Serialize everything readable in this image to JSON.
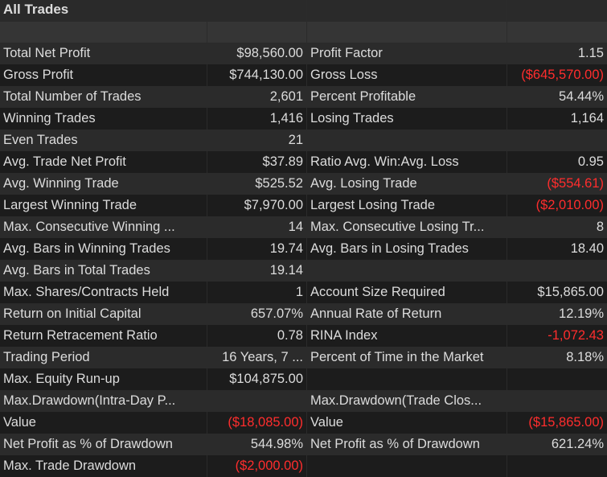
{
  "title": "All Trades",
  "colors": {
    "negative": "#ff2d2d",
    "text": "#dcdcdc",
    "row_dark": "#1c1c1c",
    "row_light": "#2b2b2b"
  },
  "rows": [
    {
      "l_label": "Total Net Profit",
      "l_value": "$98,560.00",
      "r_label": "Profit Factor",
      "r_value": "1.15"
    },
    {
      "l_label": "Gross Profit",
      "l_value": "$744,130.00",
      "r_label": "Gross Loss",
      "r_value": "($645,570.00)"
    },
    {
      "l_label": "Total Number of Trades",
      "l_value": "2,601",
      "r_label": "Percent Profitable",
      "r_value": "54.44%"
    },
    {
      "l_label": "Winning Trades",
      "l_value": "1,416",
      "r_label": "Losing Trades",
      "r_value": "1,164"
    },
    {
      "l_label": "Even Trades",
      "l_value": "21",
      "r_label": "",
      "r_value": ""
    },
    {
      "l_label": "Avg. Trade Net Profit",
      "l_value": "$37.89",
      "r_label": "Ratio Avg. Win:Avg. Loss",
      "r_value": "0.95"
    },
    {
      "l_label": "Avg. Winning Trade",
      "l_value": "$525.52",
      "r_label": "Avg. Losing Trade",
      "r_value": "($554.61)"
    },
    {
      "l_label": "Largest Winning Trade",
      "l_value": "$7,970.00",
      "r_label": "Largest Losing Trade",
      "r_value": "($2,010.00)"
    },
    {
      "l_label": "Max. Consecutive Winning ...",
      "l_value": "14",
      "r_label": "Max. Consecutive Losing Tr...",
      "r_value": "8"
    },
    {
      "l_label": "Avg. Bars in Winning Trades",
      "l_value": "19.74",
      "r_label": "Avg. Bars in Losing Trades",
      "r_value": "18.40"
    },
    {
      "l_label": "Avg. Bars in Total Trades",
      "l_value": "19.14",
      "r_label": "",
      "r_value": ""
    },
    {
      "l_label": "Max. Shares/Contracts Held",
      "l_value": "1",
      "r_label": "Account Size Required",
      "r_value": "$15,865.00"
    },
    {
      "l_label": "Return on Initial Capital",
      "l_value": "657.07%",
      "r_label": "Annual Rate of Return",
      "r_value": "12.19%"
    },
    {
      "l_label": "Return Retracement Ratio",
      "l_value": "0.78",
      "r_label": "RINA Index",
      "r_value": "-1,072.43"
    },
    {
      "l_label": "Trading Period",
      "l_value": "16 Years, 7 ...",
      "r_label": "Percent of Time in the Market",
      "r_value": "8.18%"
    },
    {
      "l_label": "Max. Equity Run-up",
      "l_value": "$104,875.00",
      "r_label": "",
      "r_value": ""
    },
    {
      "l_label": "Max.Drawdown(Intra-Day P...",
      "l_value": "",
      "r_label": "Max.Drawdown(Trade Clos...",
      "r_value": ""
    },
    {
      "l_label": "Value",
      "l_value": "($18,085.00)",
      "r_label": "Value",
      "r_value": "($15,865.00)"
    },
    {
      "l_label": "Net Profit as % of Drawdown",
      "l_value": "544.98%",
      "r_label": "Net Profit as % of Drawdown",
      "r_value": "621.24%"
    },
    {
      "l_label": "Max. Trade Drawdown",
      "l_value": "($2,000.00)",
      "r_label": "",
      "r_value": ""
    }
  ]
}
